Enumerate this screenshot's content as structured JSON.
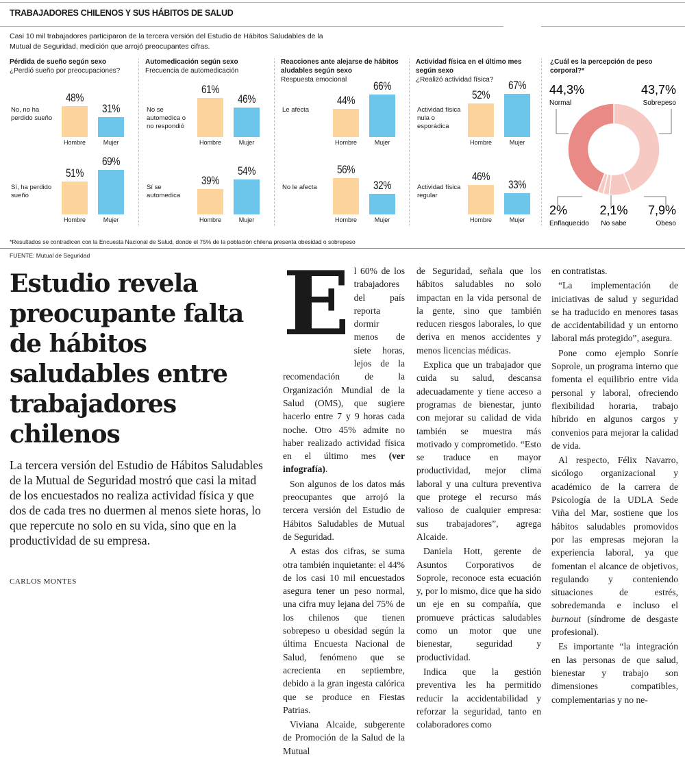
{
  "infographic": {
    "title": "TRABAJADORES CHILENOS Y SUS HÁBITOS DE SALUD",
    "intro": "Casi 10 mil trabajadores participaron de la tercera versión del Estudio de Hábitos Saludables de la Mutual de Seguridad, medición que arrojó preocupantes cifras.",
    "colors": {
      "hombre": "#fcd49c",
      "mujer": "#6cc5ea",
      "normal": "#e98a86",
      "other": "#f6c9c3"
    },
    "panels": [
      {
        "title": "Pérdida de sueño según sexo",
        "subtitle": "¿Perdió sueño por preocupaciones?",
        "rows": [
          {
            "label": "No, no ha perdido sueño",
            "hombre": 48,
            "mujer": 31,
            "hombre_label": "48%",
            "mujer_label": "31%"
          },
          {
            "label": "Sí, ha perdido sueño",
            "hombre": 51,
            "mujer": 69,
            "hombre_label": "51%",
            "mujer_label": "69%"
          }
        ]
      },
      {
        "title": "Automedicación según sexo",
        "subtitle": "Frecuencia de automedicación",
        "rows": [
          {
            "label": "No se automedica o no respondió",
            "hombre": 61,
            "mujer": 46,
            "hombre_label": "61%",
            "mujer_label": "46%"
          },
          {
            "label": "Sí se automedica",
            "hombre": 39,
            "mujer": 54,
            "hombre_label": "39%",
            "mujer_label": "54%"
          }
        ]
      },
      {
        "title": "Reacciones ante alejarse de hábitos aludables según sexo",
        "subtitle": "Respuesta emocional",
        "rows": [
          {
            "label": "Le afecta",
            "hombre": 44,
            "mujer": 66,
            "hombre_label": "44%",
            "mujer_label": "66%"
          },
          {
            "label": "No le afecta",
            "hombre": 56,
            "mujer": 32,
            "hombre_label": "56%",
            "mujer_label": "32%"
          }
        ]
      },
      {
        "title": "Actividad física en el último mes según sexo",
        "subtitle": "¿Realizó actividad física?",
        "rows": [
          {
            "label": "Actividad física nula o esporádica",
            "hombre": 52,
            "mujer": 67,
            "hombre_label": "52%",
            "mujer_label": "67%"
          },
          {
            "label": "Actividad física regular",
            "hombre": 46,
            "mujer": 33,
            "hombre_label": "46%",
            "mujer_label": "33%"
          }
        ]
      }
    ],
    "hombre": "Hombre",
    "mujer": "Mujer",
    "donut": {
      "title": "¿Cuál es la percepción de peso corporal?*",
      "slices": [
        {
          "label": "Sobrepeso",
          "value": 43.7,
          "text": "43,7%"
        },
        {
          "label": "Obeso",
          "value": 7.9,
          "text": "7,9%"
        },
        {
          "label": "No sabe",
          "value": 2.1,
          "text": "2,1%"
        },
        {
          "label": "Enflaquecido",
          "value": 2,
          "text": "2%"
        },
        {
          "label": "Normal",
          "value": 44.3,
          "text": "44,3%"
        }
      ]
    },
    "footnote": "*Resultados se contradicen con la Encuesta Nacional de Salud, donde el 75% de la población chilena presenta obesidad o sobrepeso",
    "source_label": "FUENTE:",
    "source": " Mutual de Seguridad"
  },
  "article": {
    "headline": "Estudio revela preocupante falta de hábitos saludables entre trabajadores chilenos",
    "lead": "La tercera versión del Estudio de Hábitos Saludables de la Mutual de Seguridad mostró que casi la mitad de los encuestados no realiza actividad física y que dos de cada tres no duermen al menos siete horas, lo que repercute no solo en su vida, sino que en la productividad de su empresa.",
    "byline": "CARLOS MONTES",
    "dropcap": "E",
    "p1": "l 60% de los trabajadores del país reporta dormir menos de siete horas, lejos de la recomendación de la Organización Mundial de la Salud (OMS), que sugiere hacerlo entre 7 y 9 horas cada noche. Otro 45% admite no haber realizado actividad física en el último mes ",
    "p1_bold": "(ver infografía)",
    "p1_end": ".",
    "p2": "Son algunos de los datos más preocupantes que arrojó la tercera versión del Estudio de Hábitos Saludables de Mutual de Seguridad.",
    "p3": "A estas dos cifras, se suma otra también inquietante: el 44% de los casi 10 mil encuestados asegura tener un peso normal, una cifra muy lejana del 75% de los chilenos que tienen sobrepeso u obesidad según la última Encuesta Nacional de Salud, fenómeno que se acrecienta en septiembre, debido a la gran ingesta calórica que se produce en Fiestas Patrias.",
    "p4a": "Viviana Alcaide, subgerente de Promoción de la Salud de la Mutual",
    "p4b": "de Seguridad, señala que los hábitos saludables no solo impactan en la vida personal de la gente, sino que también reducen riesgos laborales, lo que deriva en menos accidentes y menos licencias médicas.",
    "p5": "Explica que un trabajador que cuida su salud, descansa adecuadamente y tiene acceso a programas de bienestar, junto con mejorar su calidad de vida también se muestra más motivado y comprometido. “Esto se traduce en mayor productividad, mejor clima laboral y una cultura preventiva que protege el recurso más valioso de cualquier empresa: sus trabajadores”, agrega Alcaide.",
    "p6": "Daniela Hott, gerente de Asuntos Corporativos de Soprole, reconoce esta ecuación y, por lo mismo, dice que ha sido un eje en su compañía, que promueve prácticas saludables como un motor que une bienestar, seguridad y productividad.",
    "p7a": "Indica que la gestión preventiva les ha permitido reducir la accidentabilidad y reforzar la seguridad, tanto en colaboradores como",
    "p7b": "en contratistas.",
    "p8": "“La implementación de iniciativas de salud y seguridad se ha traducido en menores tasas de accidentabilidad y un entorno laboral más protegido”, asegura.",
    "p9": "Pone como ejemplo Sonríe Soprole, un programa interno que fomenta el equilibrio entre vida personal y laboral, ofreciendo flexibilidad horaria, trabajo híbrido en algunos cargos y convenios para mejorar la calidad de vida.",
    "p10": "Al respecto, Félix Navarro, sicólogo organizacional y académico de la carrera de Psicología de la UDLA Sede Viña del Mar, sostiene que los hábitos saludables promovidos por las empresas mejoran la experiencia laboral, ya que fomentan el alcance de objetivos, regulando y conteniendo situaciones de estrés, sobredemanda e incluso el ",
    "p10_em": "burnout",
    "p10_end": " (síndrome de desgaste profesional).",
    "p11": "Es importante “la integración en las personas de que salud, bienestar y trabajo son dimensiones compatibles, complementarias y no ne-"
  }
}
